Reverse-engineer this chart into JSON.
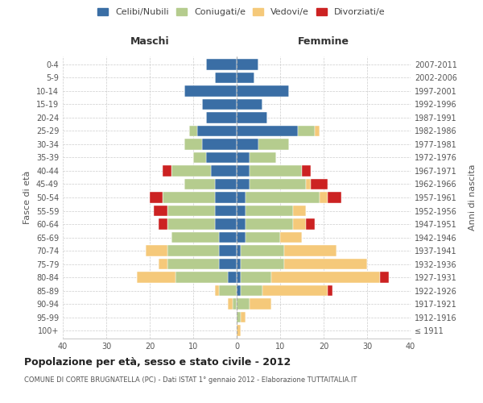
{
  "age_groups": [
    "100+",
    "95-99",
    "90-94",
    "85-89",
    "80-84",
    "75-79",
    "70-74",
    "65-69",
    "60-64",
    "55-59",
    "50-54",
    "45-49",
    "40-44",
    "35-39",
    "30-34",
    "25-29",
    "20-24",
    "15-19",
    "10-14",
    "5-9",
    "0-4"
  ],
  "birth_years": [
    "≤ 1911",
    "1912-1916",
    "1917-1921",
    "1922-1926",
    "1927-1931",
    "1932-1936",
    "1937-1941",
    "1942-1946",
    "1947-1951",
    "1952-1956",
    "1957-1961",
    "1962-1966",
    "1967-1971",
    "1972-1976",
    "1977-1981",
    "1982-1986",
    "1987-1991",
    "1992-1996",
    "1997-2001",
    "2002-2006",
    "2007-2011"
  ],
  "colors": {
    "celibi": "#3a6ea5",
    "coniugati": "#b5cc8e",
    "vedovi": "#f5c97a",
    "divorziati": "#cc2222"
  },
  "maschi": {
    "celibi": [
      0,
      0,
      0,
      0,
      2,
      4,
      4,
      4,
      5,
      5,
      5,
      5,
      6,
      7,
      8,
      9,
      7,
      8,
      12,
      5,
      7
    ],
    "coniugati": [
      0,
      0,
      1,
      4,
      12,
      12,
      12,
      11,
      11,
      11,
      12,
      7,
      9,
      3,
      4,
      2,
      0,
      0,
      0,
      0,
      0
    ],
    "vedovi": [
      0,
      0,
      1,
      1,
      9,
      2,
      5,
      0,
      0,
      0,
      0,
      0,
      0,
      0,
      0,
      0,
      0,
      0,
      0,
      0,
      0
    ],
    "divorziati": [
      0,
      0,
      0,
      0,
      0,
      0,
      0,
      0,
      2,
      3,
      3,
      0,
      2,
      0,
      0,
      0,
      0,
      0,
      0,
      0,
      0
    ]
  },
  "femmine": {
    "celibi": [
      0,
      0,
      0,
      1,
      1,
      1,
      1,
      2,
      2,
      2,
      2,
      3,
      3,
      3,
      5,
      14,
      7,
      6,
      12,
      4,
      5
    ],
    "coniugati": [
      0,
      1,
      3,
      5,
      7,
      10,
      10,
      8,
      11,
      11,
      17,
      13,
      12,
      6,
      7,
      4,
      0,
      0,
      0,
      0,
      0
    ],
    "vedovi": [
      1,
      1,
      5,
      15,
      25,
      19,
      12,
      5,
      3,
      3,
      2,
      1,
      0,
      0,
      0,
      1,
      0,
      0,
      0,
      0,
      0
    ],
    "divorziati": [
      0,
      0,
      0,
      1,
      2,
      0,
      0,
      0,
      2,
      0,
      3,
      4,
      2,
      0,
      0,
      0,
      0,
      0,
      0,
      0,
      0
    ]
  },
  "title": "Popolazione per età, sesso e stato civile - 2012",
  "subtitle": "COMUNE DI CORTE BRUGNATELLA (PC) - Dati ISTAT 1° gennaio 2012 - Elaborazione TUTTAITALIA.IT",
  "xlabel_left": "Maschi",
  "xlabel_right": "Femmine",
  "ylabel": "Fasce di età",
  "ylabel_right": "Anni di nascita",
  "legend_labels": [
    "Celibi/Nubili",
    "Coniugati/e",
    "Vedovi/e",
    "Divorziati/e"
  ],
  "xlim": 40,
  "background_color": "#ffffff",
  "bar_height": 0.8
}
